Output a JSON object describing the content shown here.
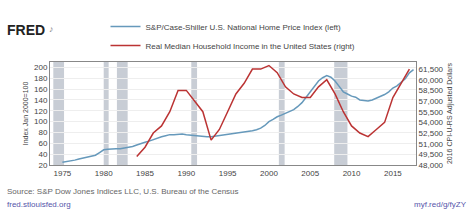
{
  "chart_data": {
    "type": "line",
    "annotations": [
      "FRED",
      "♪",
      "Source: S&P Dow Jones Indices LLC, U.S. Bureau of the Census",
      "fred.stlouisfed.org",
      "myf.red/g/fyZY"
    ],
    "y_label": "Index Jan 2000=100",
    "y2_label": "2016 CPI-U-RS Adjusted Dollars",
    "grid": true,
    "legend": "top",
    "xlim": [
      1973.5,
      2017.8
    ],
    "xticks": [
      1975,
      1980,
      1985,
      1990,
      1995,
      2000,
      2005,
      2010,
      2015
    ],
    "ylim": [
      20,
      210
    ],
    "yticks": [
      20,
      40,
      60,
      80,
      100,
      120,
      140,
      160,
      180,
      200
    ],
    "y2lim": [
      48000,
      62500
    ],
    "y2ticks": [
      {
        "value": 48000,
        "label": "48,000"
      },
      {
        "value": 49500,
        "label": "49,500"
      },
      {
        "value": 51000,
        "label": "51,000"
      },
      {
        "value": 52500,
        "label": "52,500"
      },
      {
        "value": 54000,
        "label": "54,000"
      },
      {
        "value": 55500,
        "label": "55,500"
      },
      {
        "value": 57000,
        "label": "57,000"
      },
      {
        "value": 58500,
        "label": "58,500"
      },
      {
        "value": 60000,
        "label": "60,000"
      },
      {
        "value": 61500,
        "label": "61,500"
      }
    ],
    "recession_bands": {
      "color": "#c8cdd5",
      "ranges": [
        [
          1973.9,
          1975.2
        ],
        [
          1980.0,
          1980.6
        ],
        [
          1981.6,
          1982.9
        ],
        [
          1990.6,
          1991.3
        ],
        [
          2001.2,
          2001.9
        ],
        [
          2007.9,
          2009.5
        ]
      ]
    },
    "series": [
      {
        "name": "S&P/Case-Shiller U.S. National Home Price Index (left)",
        "color": "#6699bb",
        "x": [
          1975.0,
          1975.5,
          1976.0,
          1976.5,
          1977.0,
          1977.5,
          1978.0,
          1978.5,
          1979.0,
          1979.5,
          1980.0,
          1980.5,
          1981.0,
          1981.5,
          1982.0,
          1982.5,
          1983.0,
          1983.5,
          1984.0,
          1984.5,
          1985.0,
          1985.5,
          1986.0,
          1986.5,
          1987.0,
          1987.5,
          1988.0,
          1988.5,
          1989.0,
          1989.5,
          1990.0,
          1990.5,
          1991.0,
          1991.5,
          1992.0,
          1992.5,
          1993.0,
          1993.5,
          1994.0,
          1994.5,
          1995.0,
          1995.5,
          1996.0,
          1996.5,
          1997.0,
          1997.5,
          1998.0,
          1998.5,
          1999.0,
          1999.5,
          2000.0,
          2000.5,
          2001.0,
          2001.5,
          2002.0,
          2002.5,
          2003.0,
          2003.5,
          2004.0,
          2004.5,
          2005.0,
          2005.5,
          2006.0,
          2006.5,
          2007.0,
          2007.5,
          2008.0,
          2008.5,
          2009.0,
          2009.5,
          2010.0,
          2010.5,
          2011.0,
          2011.5,
          2012.0,
          2012.5,
          2013.0,
          2013.5,
          2014.0,
          2014.5,
          2015.0,
          2015.5,
          2016.0,
          2016.5,
          2017.0,
          2017.5
        ],
        "values": [
          25,
          26,
          28,
          29,
          31,
          33,
          35,
          37,
          38,
          43,
          48,
          49,
          50,
          50,
          50,
          51,
          52,
          54,
          57,
          60,
          62,
          64,
          67,
          70,
          72,
          74,
          76,
          76,
          77,
          77,
          76,
          75,
          74,
          73,
          73,
          72,
          72,
          73,
          74,
          75,
          76,
          77,
          78,
          79,
          80,
          81,
          83,
          85,
          88,
          93,
          100,
          104,
          109,
          112,
          115,
          118,
          122,
          128,
          135,
          145,
          155,
          165,
          175,
          181,
          185,
          182,
          175,
          165,
          155,
          151,
          147,
          145,
          140,
          139,
          138,
          140,
          143,
          147,
          150,
          155,
          162,
          166,
          172,
          179,
          190,
          196
        ]
      },
      {
        "name": "Real Median Household Income in the United States (right)",
        "color": "#bb3333",
        "axis": "y2",
        "x": [
          1984,
          1985,
          1986,
          1987,
          1988,
          1989,
          1990,
          1991,
          1992,
          1993,
          1994,
          1995,
          1996,
          1997,
          1998,
          1999,
          2000,
          2001,
          2002,
          2003,
          2004,
          2005,
          2006,
          2007,
          2008,
          2009,
          2010,
          2011,
          2012,
          2013,
          2014,
          2015,
          2016,
          2017
        ],
        "values": [
          49200,
          50500,
          52500,
          53500,
          55500,
          58500,
          58500,
          57000,
          55500,
          51500,
          53000,
          55500,
          58000,
          59500,
          61500,
          61500,
          62000,
          61000,
          59000,
          58000,
          57500,
          57500,
          59000,
          60000,
          58000,
          55500,
          53500,
          52500,
          52000,
          53000,
          54000,
          57500,
          59500,
          61500
        ]
      }
    ]
  }
}
